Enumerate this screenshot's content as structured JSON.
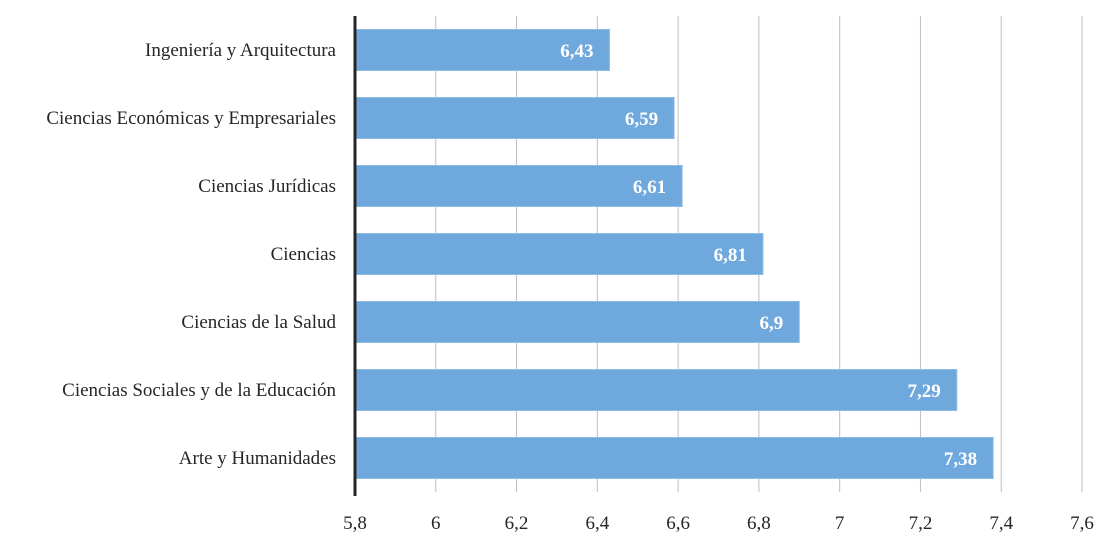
{
  "chart_data": {
    "type": "bar",
    "orientation": "horizontal",
    "categories": [
      "Ingeniería y Arquitectura",
      "Ciencias Económicas y Empresariales",
      "Ciencias Jurídicas",
      "Ciencias",
      "Ciencias de la Salud",
      "Ciencias Sociales y de la Educación",
      "Arte y Humanidades"
    ],
    "values": [
      6.43,
      6.59,
      6.61,
      6.81,
      6.9,
      7.29,
      7.38
    ],
    "data_labels": [
      "6,43",
      "6,59",
      "6,61",
      "6,81",
      "6,9",
      "7,29",
      "7,38"
    ],
    "xticks": [
      5.8,
      6,
      6.2,
      6.4,
      6.6,
      6.8,
      7,
      7.2,
      7.4,
      7.6
    ],
    "xtick_labels": [
      "5,8",
      "6",
      "6,2",
      "6,4",
      "6,6",
      "6,8",
      "7",
      "7,2",
      "7,4",
      "7,6"
    ],
    "xlim": [
      5.8,
      7.6
    ],
    "title": "",
    "xlabel": "",
    "ylabel": "",
    "grid": "vertical",
    "legend": "none",
    "bar_color": "#6fa8dc",
    "bar_edge_color": "#8fbce6",
    "data_label_color": "#ffffff",
    "grid_color": "#bfbfbf",
    "axis_color": "#262626"
  }
}
